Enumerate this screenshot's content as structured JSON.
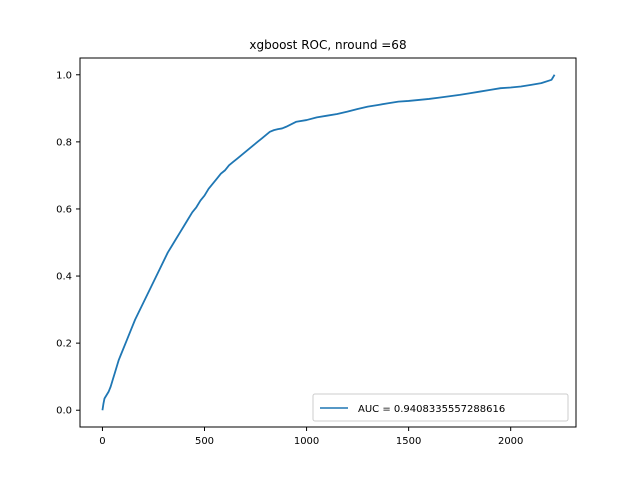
{
  "chart_data": {
    "type": "line",
    "title": "xgboost ROC, nround =68",
    "xlabel": "",
    "ylabel": "",
    "xlim": [
      -110,
      2320
    ],
    "ylim": [
      -0.05,
      1.05
    ],
    "xticks": [
      0,
      500,
      1000,
      1500,
      2000
    ],
    "yticks": [
      0.0,
      0.2,
      0.4,
      0.6,
      0.8,
      1.0
    ],
    "xtick_labels": [
      "0",
      "500",
      "1000",
      "1500",
      "2000"
    ],
    "ytick_labels": [
      "0.0",
      "0.2",
      "0.4",
      "0.6",
      "0.8",
      "1.0"
    ],
    "grid": false,
    "legend": {
      "placement": "lower-right"
    },
    "series": [
      {
        "name": "AUC = 0.9408335557288616",
        "color": "#1f77b4",
        "x": [
          0,
          5,
          10,
          20,
          30,
          40,
          50,
          60,
          70,
          80,
          90,
          100,
          120,
          140,
          160,
          180,
          200,
          220,
          240,
          260,
          280,
          300,
          320,
          340,
          360,
          380,
          400,
          420,
          440,
          460,
          480,
          500,
          520,
          540,
          560,
          580,
          600,
          620,
          640,
          660,
          680,
          700,
          720,
          740,
          760,
          780,
          800,
          820,
          840,
          860,
          880,
          900,
          950,
          1000,
          1050,
          1100,
          1150,
          1200,
          1250,
          1300,
          1350,
          1400,
          1450,
          1500,
          1550,
          1600,
          1650,
          1700,
          1750,
          1800,
          1850,
          1900,
          1950,
          2000,
          2050,
          2100,
          2150,
          2200,
          2205,
          2210,
          2215
        ],
        "y": [
          0.0,
          0.02,
          0.035,
          0.045,
          0.055,
          0.07,
          0.09,
          0.11,
          0.13,
          0.15,
          0.165,
          0.18,
          0.21,
          0.24,
          0.27,
          0.295,
          0.32,
          0.345,
          0.37,
          0.395,
          0.42,
          0.445,
          0.47,
          0.49,
          0.51,
          0.53,
          0.55,
          0.57,
          0.59,
          0.605,
          0.625,
          0.64,
          0.66,
          0.675,
          0.69,
          0.705,
          0.715,
          0.73,
          0.74,
          0.75,
          0.76,
          0.77,
          0.78,
          0.79,
          0.8,
          0.81,
          0.82,
          0.83,
          0.835,
          0.838,
          0.84,
          0.845,
          0.86,
          0.865,
          0.873,
          0.878,
          0.883,
          0.89,
          0.898,
          0.905,
          0.91,
          0.915,
          0.92,
          0.922,
          0.925,
          0.928,
          0.932,
          0.936,
          0.94,
          0.945,
          0.95,
          0.955,
          0.96,
          0.962,
          0.965,
          0.97,
          0.975,
          0.985,
          0.99,
          0.995,
          1.0
        ]
      }
    ]
  }
}
